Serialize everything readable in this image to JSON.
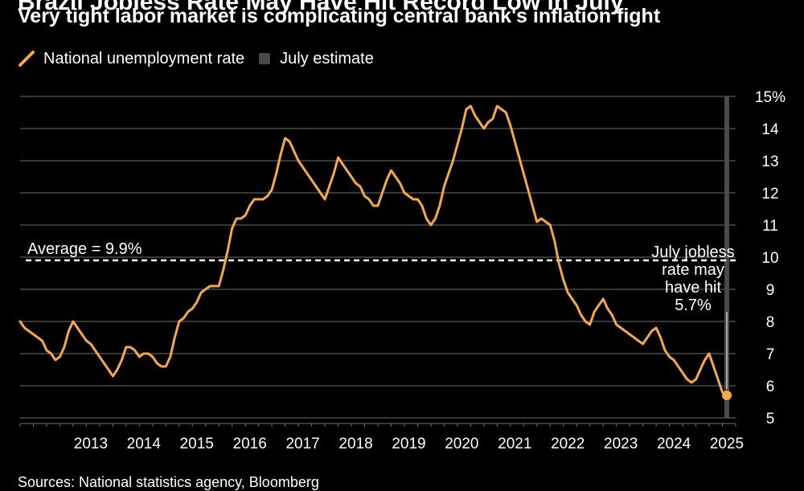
{
  "title": "Brazil Jobless Rate May Have Hit Record Low in July",
  "subtitle": "Very tight labor market is complicating central bank's inflation fight",
  "legend": [
    {
      "label": "National unemployment rate",
      "color": "#f5a849",
      "icon": "line-swatch-icon"
    },
    {
      "label": "July estimate",
      "color": "#4a4a4a",
      "icon": "square-swatch-icon"
    }
  ],
  "source": "Sources: National statistics agency, Bloomberg",
  "colors": {
    "line": "#f5a849",
    "grid": "#6e6e6e",
    "estimate_band": "#4a4a4a",
    "text": "#ffffff",
    "background": "#000000"
  },
  "chart_data": {
    "type": "line",
    "title": "",
    "xlabel": "",
    "ylabel": "",
    "ylim": [
      5,
      15
    ],
    "y_unit_label": "15%",
    "y_ticks": [
      {
        "value": 15,
        "label": "15%"
      },
      {
        "value": 14,
        "label": "14"
      },
      {
        "value": 13,
        "label": "13"
      },
      {
        "value": 12,
        "label": "12"
      },
      {
        "value": 11,
        "label": "11"
      },
      {
        "value": 10,
        "label": "10"
      },
      {
        "value": 9,
        "label": "9"
      },
      {
        "value": 8,
        "label": "8"
      },
      {
        "value": 7,
        "label": "7"
      },
      {
        "value": 6,
        "label": "6"
      },
      {
        "value": 5,
        "label": "5"
      }
    ],
    "x_tick_labels": [
      "2013",
      "2014",
      "2015",
      "2016",
      "2017",
      "2018",
      "2019",
      "2020",
      "2021",
      "2022",
      "2023",
      "2024",
      "2025"
    ],
    "xlim": [
      "2012-03",
      "2025-09"
    ],
    "grid": true,
    "legend_position": "top-left",
    "series": [
      {
        "name": "National unemployment rate",
        "x": [
          "2012-03",
          "2012-04",
          "2012-05",
          "2012-06",
          "2012-07",
          "2012-08",
          "2012-09",
          "2012-10",
          "2012-11",
          "2012-12",
          "2013-01",
          "2013-02",
          "2013-03",
          "2013-04",
          "2013-05",
          "2013-06",
          "2013-07",
          "2013-08",
          "2013-09",
          "2013-10",
          "2013-11",
          "2013-12",
          "2014-01",
          "2014-02",
          "2014-03",
          "2014-04",
          "2014-05",
          "2014-06",
          "2014-07",
          "2014-08",
          "2014-09",
          "2014-10",
          "2014-11",
          "2014-12",
          "2015-01",
          "2015-02",
          "2015-03",
          "2015-04",
          "2015-05",
          "2015-06",
          "2015-07",
          "2015-08",
          "2015-09",
          "2015-10",
          "2015-11",
          "2015-12",
          "2016-01",
          "2016-02",
          "2016-03",
          "2016-04",
          "2016-05",
          "2016-06",
          "2016-07",
          "2016-08",
          "2016-09",
          "2016-10",
          "2016-11",
          "2016-12",
          "2017-01",
          "2017-02",
          "2017-03",
          "2017-04",
          "2017-05",
          "2017-06",
          "2017-07",
          "2017-08",
          "2017-09",
          "2017-10",
          "2017-11",
          "2017-12",
          "2018-01",
          "2018-02",
          "2018-03",
          "2018-04",
          "2018-05",
          "2018-06",
          "2018-07",
          "2018-08",
          "2018-09",
          "2018-10",
          "2018-11",
          "2018-12",
          "2019-01",
          "2019-02",
          "2019-03",
          "2019-04",
          "2019-05",
          "2019-06",
          "2019-07",
          "2019-08",
          "2019-09",
          "2019-10",
          "2019-11",
          "2019-12",
          "2020-01",
          "2020-02",
          "2020-03",
          "2020-04",
          "2020-05",
          "2020-06",
          "2020-07",
          "2020-08",
          "2020-09",
          "2020-10",
          "2020-11",
          "2020-12",
          "2021-01",
          "2021-02",
          "2021-03",
          "2021-04",
          "2021-05",
          "2021-06",
          "2021-07",
          "2021-08",
          "2021-09",
          "2021-10",
          "2021-11",
          "2021-12",
          "2022-01",
          "2022-02",
          "2022-03",
          "2022-04",
          "2022-05",
          "2022-06",
          "2022-07",
          "2022-08",
          "2022-09",
          "2022-10",
          "2022-11",
          "2022-12",
          "2023-01",
          "2023-02",
          "2023-03",
          "2023-04",
          "2023-05",
          "2023-06",
          "2023-07",
          "2023-08",
          "2023-09",
          "2023-10",
          "2023-11",
          "2023-12",
          "2024-01",
          "2024-02",
          "2024-03",
          "2024-04",
          "2024-05",
          "2024-06",
          "2024-07",
          "2024-08",
          "2024-09",
          "2024-10",
          "2024-11",
          "2024-12",
          "2025-01",
          "2025-02",
          "2025-03",
          "2025-04",
          "2025-05",
          "2025-06"
        ],
        "values": [
          8.0,
          7.8,
          7.7,
          7.6,
          7.5,
          7.4,
          7.1,
          7.0,
          6.8,
          6.9,
          7.2,
          7.7,
          8.0,
          7.8,
          7.6,
          7.4,
          7.3,
          7.1,
          6.9,
          6.7,
          6.5,
          6.3,
          6.5,
          6.8,
          7.2,
          7.2,
          7.1,
          6.9,
          7.0,
          7.0,
          6.9,
          6.7,
          6.6,
          6.6,
          6.9,
          7.5,
          8.0,
          8.1,
          8.3,
          8.4,
          8.6,
          8.9,
          9.0,
          9.1,
          9.1,
          9.1,
          9.6,
          10.2,
          10.9,
          11.2,
          11.2,
          11.3,
          11.6,
          11.8,
          11.8,
          11.8,
          11.9,
          12.1,
          12.6,
          13.2,
          13.7,
          13.6,
          13.3,
          13.0,
          12.8,
          12.6,
          12.4,
          12.2,
          12.0,
          11.8,
          12.2,
          12.6,
          13.1,
          12.9,
          12.7,
          12.5,
          12.3,
          12.2,
          11.9,
          11.8,
          11.6,
          11.6,
          12.0,
          12.4,
          12.7,
          12.5,
          12.3,
          12.0,
          11.9,
          11.8,
          11.8,
          11.6,
          11.2,
          11.0,
          11.2,
          11.6,
          12.2,
          12.6,
          13.0,
          13.5,
          14.0,
          14.6,
          14.7,
          14.4,
          14.2,
          14.0,
          14.2,
          14.3,
          14.7,
          14.6,
          14.5,
          14.1,
          13.6,
          13.1,
          12.6,
          12.1,
          11.6,
          11.1,
          11.2,
          11.1,
          11.0,
          10.5,
          9.8,
          9.3,
          8.9,
          8.7,
          8.5,
          8.2,
          8.0,
          7.9,
          8.3,
          8.5,
          8.7,
          8.4,
          8.2,
          7.9,
          7.8,
          7.7,
          7.6,
          7.5,
          7.4,
          7.3,
          7.5,
          7.7,
          7.8,
          7.5,
          7.1,
          6.9,
          6.8,
          6.6,
          6.4,
          6.2,
          6.1,
          6.2,
          6.5,
          6.8,
          7.0,
          6.6,
          6.2,
          5.8
        ],
        "color": "#f5a849"
      },
      {
        "name": "July estimate",
        "x": [
          "2025-07"
        ],
        "values": [
          5.7
        ],
        "color": "#f5a849",
        "marker": "circle"
      }
    ],
    "reference_lines": [
      {
        "y": 9.9,
        "label": "Average = 9.9%",
        "style": "dashed"
      }
    ],
    "shaded_regions": [
      {
        "x_start": "2025-07",
        "x_end": "2025-07",
        "color": "#4a4a4a",
        "label": "July estimate"
      }
    ],
    "annotations": [
      {
        "lines": [
          "July jobless",
          "rate may",
          "have hit",
          "5.7%"
        ],
        "x": "2025-07",
        "y": 5.7
      }
    ]
  }
}
